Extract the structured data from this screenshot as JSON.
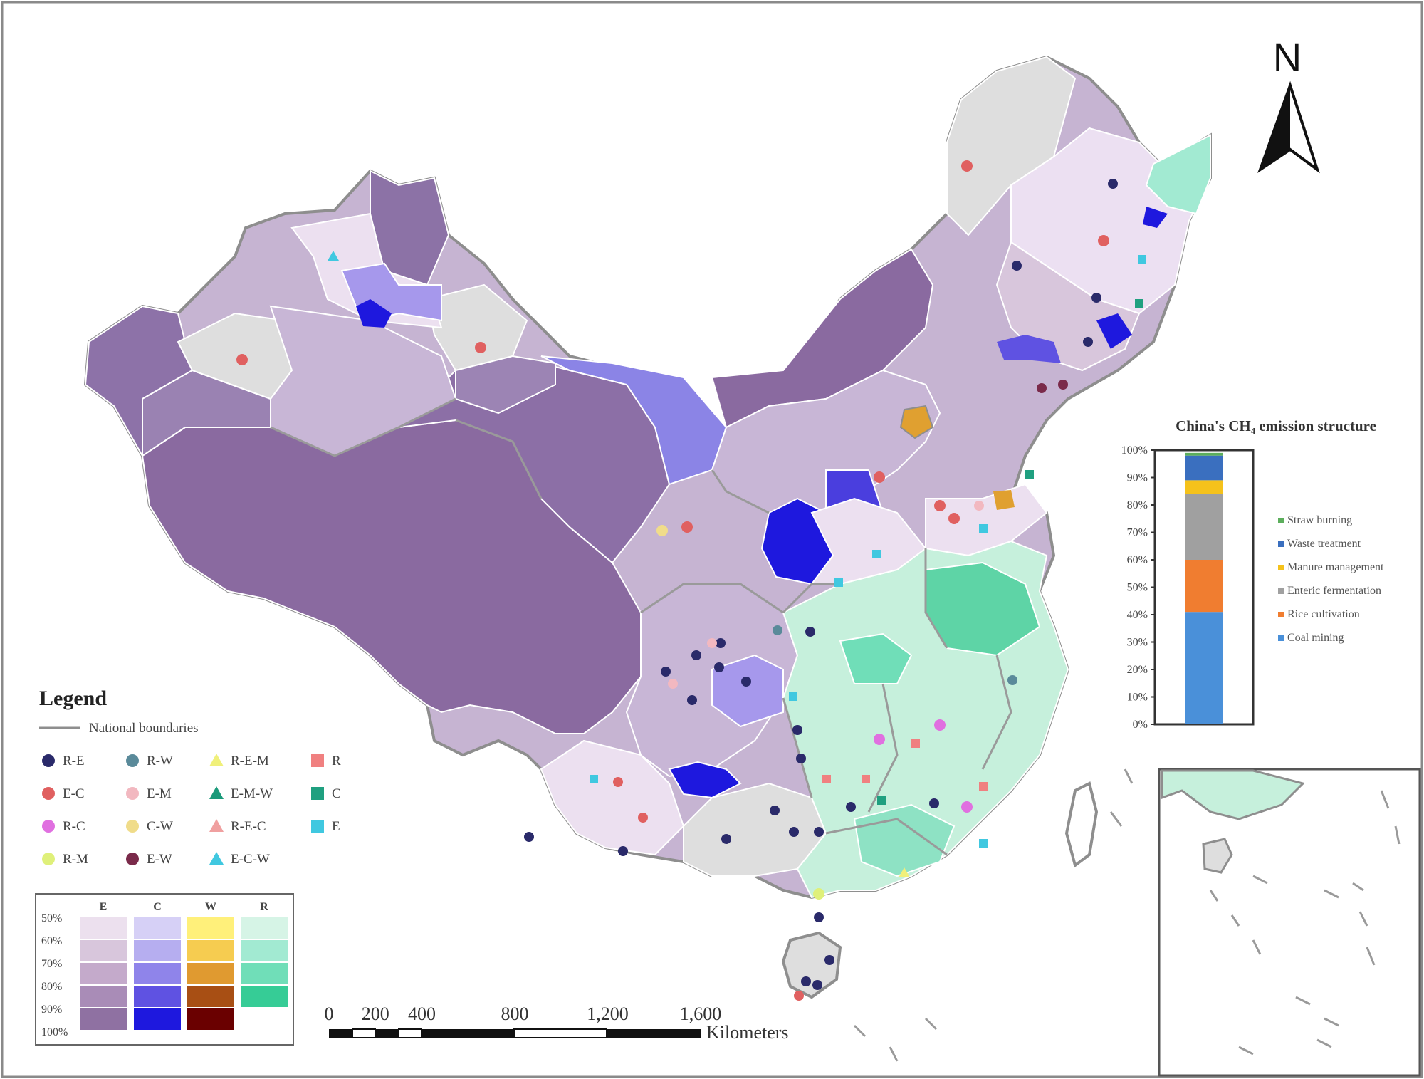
{
  "north_label": "N",
  "legend": {
    "title": "Legend",
    "boundary_label": "National boundaries",
    "items": [
      {
        "label": "R-E",
        "shape": "circle",
        "color": "#2a2a6a"
      },
      {
        "label": "E-C",
        "shape": "circle",
        "color": "#e06060"
      },
      {
        "label": "R-C",
        "shape": "circle",
        "color": "#e070e0"
      },
      {
        "label": "R-M",
        "shape": "circle",
        "color": "#dff07a"
      },
      {
        "label": "R-W",
        "shape": "circle",
        "color": "#5a8a9a"
      },
      {
        "label": "E-M",
        "shape": "circle",
        "color": "#f2b8c0"
      },
      {
        "label": "C-W",
        "shape": "circle",
        "color": "#f0dc8a"
      },
      {
        "label": "E-W",
        "shape": "circle",
        "color": "#7a2a4a"
      },
      {
        "label": "R-E-M",
        "shape": "triangle",
        "color": "#f0f07a"
      },
      {
        "label": "E-M-W",
        "shape": "triangle",
        "color": "#1a9a7a"
      },
      {
        "label": "R-E-C",
        "shape": "triangle",
        "color": "#f0a0a0"
      },
      {
        "label": "E-C-W",
        "shape": "triangle",
        "color": "#40c8e0"
      },
      {
        "label": "R",
        "shape": "square",
        "color": "#f08080"
      },
      {
        "label": "C",
        "shape": "square",
        "color": "#20a080"
      },
      {
        "label": "E",
        "shape": "square",
        "color": "#40c8e0"
      }
    ]
  },
  "ramp": {
    "columns": [
      {
        "label": "E",
        "colors": [
          "#ece0ee",
          "#d8c6dc",
          "#c4aacb",
          "#a98cb7",
          "#8f71a2"
        ]
      },
      {
        "label": "C",
        "colors": [
          "#d6d0f6",
          "#b6aef0",
          "#8f84ea",
          "#5f52e2",
          "#1e18de"
        ]
      },
      {
        "label": "W",
        "colors": [
          "#fff07a",
          "#f6cc50",
          "#e09a30",
          "#a84f14",
          "#6a0000"
        ]
      },
      {
        "label": "R",
        "colors": [
          "#d6f4e6",
          "#a2ead2",
          "#70deb8",
          "#36cc96"
        ]
      }
    ],
    "row_labels": [
      "50%",
      "60%",
      "70%",
      "80%",
      "90%",
      "100%"
    ]
  },
  "scale_bar": {
    "ticks": [
      "0",
      "200",
      "400",
      "800",
      "1,200",
      "1,600"
    ],
    "unit": "Kilometers"
  },
  "chart_data": {
    "type": "bar",
    "title": "China's CH₄ emission structure",
    "categories": [
      ""
    ],
    "stacked": true,
    "ylim": [
      0,
      100
    ],
    "yticks": [
      "0%",
      "10%",
      "20%",
      "30%",
      "40%",
      "50%",
      "60%",
      "70%",
      "80%",
      "90%",
      "100%"
    ],
    "series": [
      {
        "name": "Coal mining",
        "values": [
          41
        ],
        "color": "#4a90d9"
      },
      {
        "name": "Rice cultivation",
        "values": [
          19
        ],
        "color": "#f07d30"
      },
      {
        "name": "Enteric fermentation",
        "values": [
          24
        ],
        "color": "#a0a0a0"
      },
      {
        "name": "Manure management",
        "values": [
          5
        ],
        "color": "#f5c21b"
      },
      {
        "name": "Waste treatment",
        "values": [
          9
        ],
        "color": "#3a6fbf"
      },
      {
        "name": "Straw burning",
        "values": [
          1
        ],
        "color": "#5cae5c"
      }
    ],
    "legend_order": [
      "Straw burning",
      "Waste treatment",
      "Manure management",
      "Enteric fermentation",
      "Rice cultivation",
      "Coal mining"
    ],
    "legend_placement": "right"
  }
}
